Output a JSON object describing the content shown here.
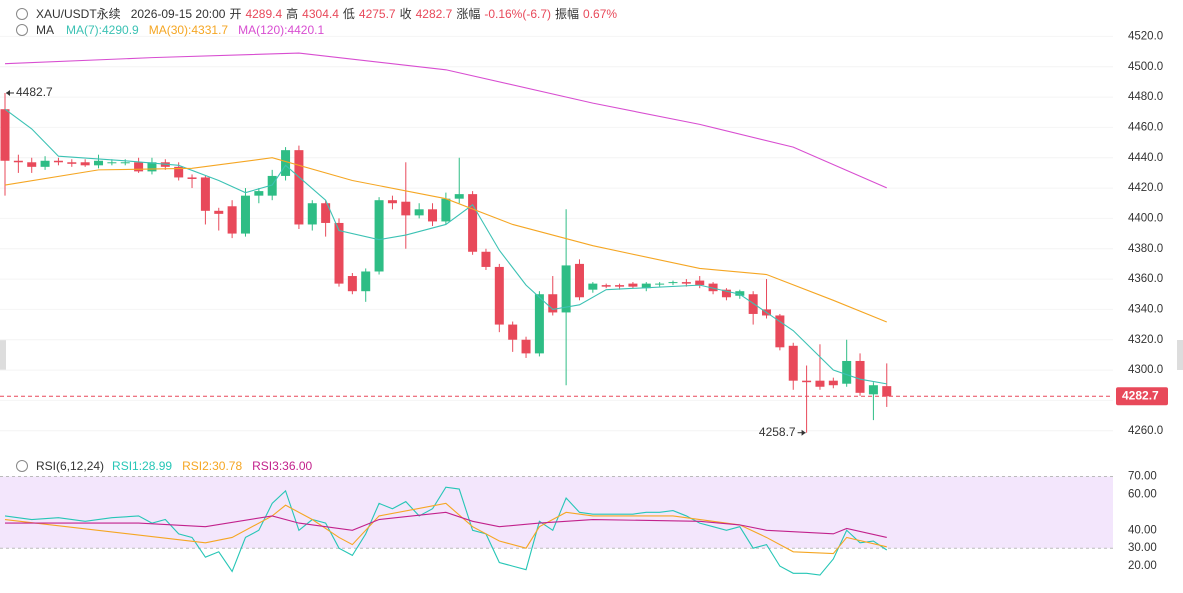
{
  "header": {
    "symbol": "XAU/USDT永续",
    "time": "2026-09-15 20:00",
    "open_label": "开",
    "high_label": "高",
    "low_label": "低",
    "close_label": "收",
    "change_label": "涨幅",
    "change": "-0.16%(-6.7)",
    "amp_label": "振幅",
    "amp": "0.67%"
  },
  "chart_data": [
    {
      "type": "candlestick",
      "indicator": "MA",
      "ylim": [
        4244,
        4544
      ],
      "yticks": [
        {
          "value": 4260,
          "label": "4260.0"
        },
        {
          "value": 4280,
          "label": "4280.0"
        },
        {
          "value": 4300,
          "label": "4300.0"
        },
        {
          "value": 4320,
          "label": "4320.0"
        },
        {
          "value": 4340,
          "label": "4340.0"
        },
        {
          "value": 4360,
          "label": "4360.0"
        },
        {
          "value": 4380,
          "label": "4380.0"
        },
        {
          "value": 4400,
          "label": "4400.0"
        },
        {
          "value": 4420,
          "label": "4420.0"
        },
        {
          "value": 4440,
          "label": "4440.0"
        },
        {
          "value": 4460,
          "label": "4460.0"
        },
        {
          "value": 4480,
          "label": "4480.0"
        },
        {
          "value": 4500,
          "label": "4500.0"
        },
        {
          "value": 4520,
          "label": "4520.0"
        }
      ],
      "up_color": "#2ebd85",
      "down_color": "#e8495a",
      "grid": true,
      "open": [
        4472,
        4438,
        4437,
        4434,
        4438,
        4437,
        4437,
        4435,
        4437,
        4437,
        4437,
        4431,
        4437,
        4434,
        4427,
        4427,
        4405,
        4408,
        4390,
        4415,
        4415,
        4428,
        4445,
        4396,
        4410,
        4397,
        4362,
        4352,
        4365,
        4412,
        4411,
        4402,
        4406,
        4398,
        4413,
        4416,
        4378,
        4368,
        4330,
        4320,
        4311,
        4350,
        4338,
        4370,
        4353,
        4356,
        4356,
        4357,
        4354,
        4357,
        4358,
        4358,
        4359,
        4357,
        4353,
        4349,
        4350,
        4340,
        4336,
        4316,
        4293,
        4293,
        4293,
        4291,
        4306,
        4284,
        4289.4
      ],
      "high": [
        4482.7,
        4442,
        4440,
        4441,
        4440,
        4439,
        4439,
        4442,
        4439,
        4439,
        4440,
        4440,
        4439,
        4437,
        4429,
        4428,
        4407,
        4412,
        4420,
        4420,
        4432,
        4447,
        4448,
        4412,
        4412,
        4400,
        4364,
        4367,
        4414,
        4415,
        4437,
        4410,
        4410,
        4417,
        4440,
        4418,
        4380,
        4370,
        4332,
        4322,
        4352,
        4362,
        4406,
        4373,
        4358,
        4357,
        4357,
        4358,
        4358,
        4358,
        4359,
        4360,
        4362,
        4358,
        4354,
        4353,
        4352,
        4360,
        4337,
        4318,
        4303,
        4317,
        4295,
        4320,
        4311,
        4292,
        4304.4
      ],
      "low": [
        4415,
        4430,
        4430,
        4432,
        4435,
        4434,
        4434,
        4433,
        4435,
        4435,
        4430,
        4429,
        4432,
        4425,
        4420,
        4396,
        4392,
        4387,
        4388,
        4410,
        4412,
        4425,
        4393,
        4392,
        4388,
        4355,
        4350,
        4345,
        4363,
        4406,
        4380,
        4400,
        4395,
        4396,
        4410,
        4376,
        4366,
        4325,
        4312,
        4308,
        4309,
        4336,
        4290,
        4346,
        4351,
        4354,
        4353,
        4354,
        4352,
        4355,
        4356,
        4355,
        4354,
        4350,
        4346,
        4347,
        4330,
        4334,
        4313,
        4287,
        4258.7,
        4287,
        4288,
        4289,
        4283,
        4267,
        4275.7
      ],
      "close": [
        4438,
        4437,
        4434,
        4438,
        4437,
        4436,
        4435,
        4438,
        4437,
        4437,
        4431,
        4437,
        4434,
        4427,
        4426,
        4405,
        4403,
        4390,
        4415,
        4418,
        4428,
        4445,
        4396,
        4410,
        4397,
        4357,
        4352,
        4365,
        4412,
        4410,
        4402,
        4406,
        4398,
        4413,
        4416,
        4378,
        4368,
        4330,
        4320,
        4311,
        4350,
        4338,
        4369,
        4348,
        4357,
        4355,
        4355,
        4355,
        4357,
        4357,
        4358,
        4357,
        4356,
        4352,
        4348,
        4352,
        4337,
        4336,
        4315,
        4293,
        4292,
        4289,
        4290,
        4306,
        4285,
        4290,
        4282.7
      ],
      "series": [
        {
          "name": "MA(7):4290.9",
          "color": "#3cc2b4",
          "x": [
            0,
            2,
            4,
            9,
            13,
            16,
            18,
            20,
            21,
            24,
            25,
            28,
            30,
            33,
            35,
            37,
            39,
            41,
            43,
            45,
            52,
            55,
            59,
            62,
            64,
            66
          ],
          "values": [
            4472,
            4459,
            4441,
            4438,
            4435,
            4425,
            4417,
            4422,
            4435,
            4412,
            4392,
            4386,
            4389,
            4396,
            4409,
            4379,
            4356,
            4340,
            4343,
            4353,
            4356,
            4350,
            4326,
            4300,
            4294,
            4290.9
          ]
        },
        {
          "name": "MA(30):4331.7",
          "color": "#f5a623",
          "x": [
            0,
            7,
            14,
            20,
            26,
            33,
            38,
            44,
            52,
            57,
            62,
            66
          ],
          "values": [
            4422,
            4432,
            4433,
            4440,
            4425,
            4413,
            4396,
            4382,
            4367,
            4363,
            4346,
            4331.7
          ]
        },
        {
          "name": "MA(120):4420.1",
          "color": "#d84ed1",
          "x": [
            0,
            11,
            22,
            33,
            44,
            52,
            59,
            66
          ],
          "values": [
            4502,
            4506,
            4509,
            4498,
            4476,
            4462,
            4447,
            4420.1
          ]
        }
      ]
    },
    {
      "type": "line",
      "indicator": "RSI(6,12,24)",
      "ylim": [
        5,
        82
      ],
      "band": [
        30,
        70
      ],
      "band_color": "#f3e6fc",
      "yticks": [
        {
          "value": 20,
          "label": "20.00"
        },
        {
          "value": 30,
          "label": "30.00"
        },
        {
          "value": 40,
          "label": "40.00"
        },
        {
          "value": 60,
          "label": "60.00"
        },
        {
          "value": 70,
          "label": "70.00"
        }
      ],
      "series": [
        {
          "name": "RSI1:28.99",
          "color": "#26c6b6",
          "x": [
            0,
            2,
            4,
            6,
            8,
            10,
            11,
            12,
            13,
            14,
            15,
            16,
            17,
            18,
            19,
            20,
            21,
            22,
            23,
            24,
            25,
            26,
            27,
            28,
            29,
            30,
            31,
            32,
            33,
            34,
            35,
            36,
            37,
            38,
            39,
            40,
            41,
            42,
            43,
            44,
            45,
            46,
            47,
            48,
            49,
            50,
            51,
            52,
            53,
            54,
            55,
            56,
            57,
            58,
            59,
            60,
            61,
            62,
            63,
            64,
            65,
            66
          ],
          "values": [
            48,
            46,
            47,
            45,
            47,
            48,
            44,
            46,
            38,
            36,
            25,
            28,
            17,
            36,
            40,
            55,
            62,
            40,
            46,
            44,
            30,
            26,
            38,
            55,
            52,
            56,
            48,
            52,
            64,
            63,
            40,
            38,
            22,
            20,
            18,
            45,
            40,
            58,
            50,
            49,
            49,
            49,
            49,
            50,
            50,
            51,
            48,
            44,
            42,
            40,
            42,
            30,
            32,
            20,
            16,
            16,
            15,
            24,
            40,
            33,
            34,
            28.99
          ]
        },
        {
          "name": "RSI2:30.78",
          "color": "#f5a623",
          "x": [
            0,
            15,
            17,
            20,
            21,
            23,
            25,
            26,
            28,
            33,
            35,
            37,
            39,
            40,
            42,
            44,
            50,
            55,
            57,
            59,
            62,
            63,
            66
          ],
          "values": [
            46,
            33,
            36,
            48,
            54,
            46,
            36,
            32,
            48,
            55,
            42,
            34,
            30,
            42,
            50,
            48,
            48,
            43,
            36,
            28,
            27,
            36,
            30.78
          ]
        },
        {
          "name": "RSI3:36.00",
          "color": "#c2228c",
          "x": [
            0,
            10,
            15,
            20,
            22,
            26,
            28,
            33,
            35,
            37,
            40,
            44,
            52,
            55,
            57,
            62,
            63,
            66
          ],
          "values": [
            44,
            44,
            42,
            48,
            44,
            40,
            46,
            50,
            45,
            42,
            44,
            46,
            45,
            43,
            40,
            38,
            41,
            36
          ]
        }
      ]
    }
  ]
}
